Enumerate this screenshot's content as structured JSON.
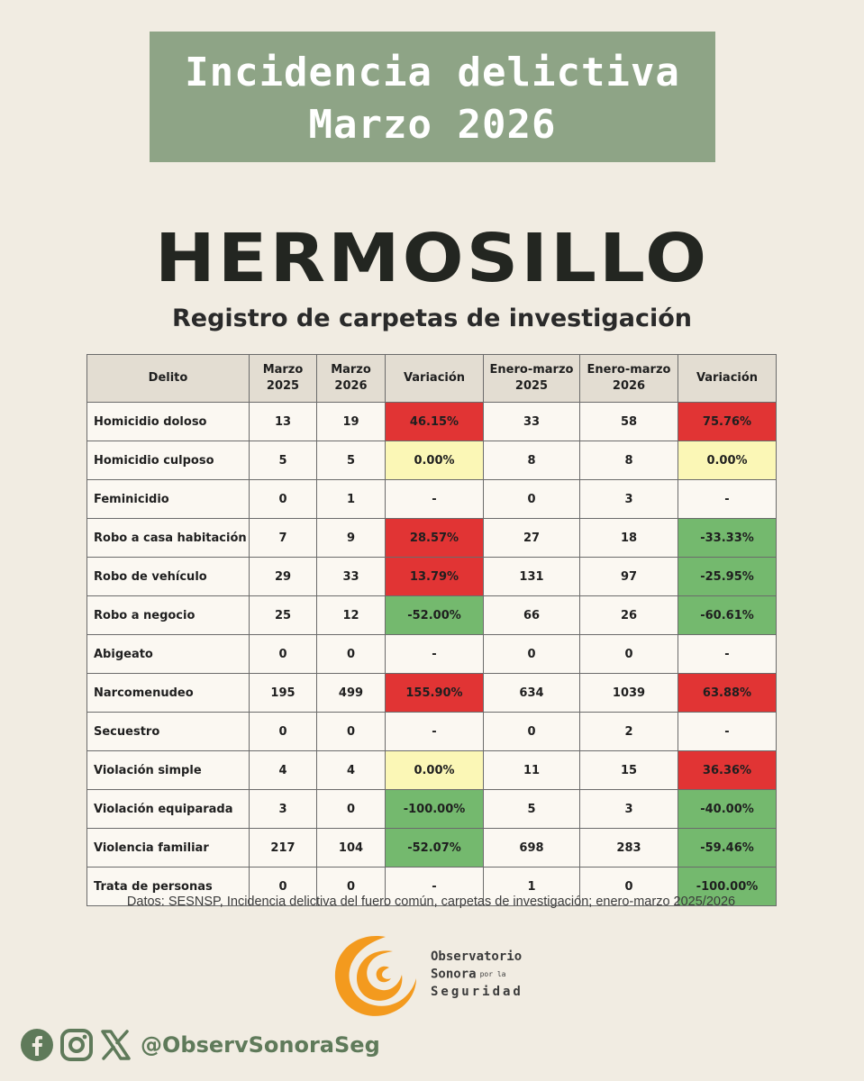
{
  "header": {
    "title_line1": "Incidencia delictiva",
    "title_line2": "Marzo 2026",
    "city": "HERMOSILLO",
    "subtitle": "Registro de carpetas de investigación"
  },
  "table": {
    "columns": [
      "Delito",
      "Marzo 2025",
      "Marzo 2026",
      "Variación",
      "Enero-marzo 2025",
      "Enero-marzo 2026",
      "Variación"
    ],
    "rows": [
      {
        "delito": "Homicidio doloso",
        "m25": "13",
        "m26": "19",
        "var1": "46.15%",
        "c1": "red",
        "e25": "33",
        "e26": "58",
        "var2": "75.76%",
        "c2": "red"
      },
      {
        "delito": "Homicidio culposo",
        "m25": "5",
        "m26": "5",
        "var1": "0.00%",
        "c1": "yellow",
        "e25": "8",
        "e26": "8",
        "var2": "0.00%",
        "c2": "yellow"
      },
      {
        "delito": "Feminicidio",
        "m25": "0",
        "m26": "1",
        "var1": "-",
        "c1": "none",
        "e25": "0",
        "e26": "3",
        "var2": "-",
        "c2": "none"
      },
      {
        "delito": "Robo a casa habitación",
        "m25": "7",
        "m26": "9",
        "var1": "28.57%",
        "c1": "red",
        "e25": "27",
        "e26": "18",
        "var2": "-33.33%",
        "c2": "green"
      },
      {
        "delito": "Robo de vehículo",
        "m25": "29",
        "m26": "33",
        "var1": "13.79%",
        "c1": "red",
        "e25": "131",
        "e26": "97",
        "var2": "-25.95%",
        "c2": "green"
      },
      {
        "delito": "Robo a negocio",
        "m25": "25",
        "m26": "12",
        "var1": "-52.00%",
        "c1": "green",
        "e25": "66",
        "e26": "26",
        "var2": "-60.61%",
        "c2": "green"
      },
      {
        "delito": "Abigeato",
        "m25": "0",
        "m26": "0",
        "var1": "-",
        "c1": "none",
        "e25": "0",
        "e26": "0",
        "var2": "-",
        "c2": "none"
      },
      {
        "delito": "Narcomenudeo",
        "m25": "195",
        "m26": "499",
        "var1": "155.90%",
        "c1": "red",
        "e25": "634",
        "e26": "1039",
        "var2": "63.88%",
        "c2": "red"
      },
      {
        "delito": "Secuestro",
        "m25": "0",
        "m26": "0",
        "var1": "-",
        "c1": "none",
        "e25": "0",
        "e26": "2",
        "var2": "-",
        "c2": "none"
      },
      {
        "delito": "Violación simple",
        "m25": "4",
        "m26": "4",
        "var1": "0.00%",
        "c1": "yellow",
        "e25": "11",
        "e26": "15",
        "var2": "36.36%",
        "c2": "red"
      },
      {
        "delito": "Violación equiparada",
        "m25": "3",
        "m26": "0",
        "var1": "-100.00%",
        "c1": "green",
        "e25": "5",
        "e26": "3",
        "var2": "-40.00%",
        "c2": "green"
      },
      {
        "delito": "Violencia familiar",
        "m25": "217",
        "m26": "104",
        "var1": "-52.07%",
        "c1": "green",
        "e25": "698",
        "e26": "283",
        "var2": "-59.46%",
        "c2": "green"
      },
      {
        "delito": "Trata de personas",
        "m25": "0",
        "m26": "0",
        "var1": "-",
        "c1": "none",
        "e25": "1",
        "e26": "0",
        "var2": "-100.00%",
        "c2": "green"
      }
    ]
  },
  "source": "Datos: SESNSP, Incidencia delictiva del fuero común, carpetas de investigación; enero-marzo 2025/2026",
  "logo": {
    "line1": "Observatorio",
    "line2": "Sonora",
    "line2_small": "por la",
    "line3": "Seguridad"
  },
  "social": {
    "icons": [
      "facebook-icon",
      "instagram-icon",
      "x-icon"
    ],
    "handle": "@ObservSonoraSeg"
  },
  "colors": {
    "title_box": "#8ea486",
    "background": "#f1ece2",
    "increase": "#e13434",
    "no_change": "#fbf7b6",
    "decrease": "#74b96e",
    "logo_orange": "#f39a1e",
    "social_green": "#5f7a5a"
  }
}
